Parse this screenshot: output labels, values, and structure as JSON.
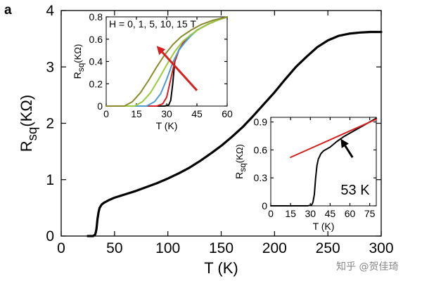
{
  "panel_label": "a",
  "watermark": "知乎 @贺佳琦",
  "chart_data": [
    {
      "type": "line",
      "id": "main",
      "xlabel": "T (K)",
      "ylabel": "R_sq(KΩ)",
      "xlim": [
        0,
        300
      ],
      "ylim": [
        0,
        4
      ],
      "xticks": [
        0,
        50,
        100,
        150,
        200,
        250,
        300
      ],
      "yticks": [
        0,
        1,
        2,
        3,
        4
      ],
      "series": [
        {
          "color": "#000000",
          "x": [
            25,
            30,
            32,
            33,
            34,
            35,
            36,
            38,
            40,
            45,
            50,
            60,
            70,
            80,
            90,
            100,
            110,
            120,
            130,
            140,
            150,
            160,
            170,
            180,
            190,
            200,
            210,
            220,
            230,
            240,
            250,
            260,
            270,
            280,
            290,
            300
          ],
          "y": [
            0,
            0,
            0.03,
            0.12,
            0.3,
            0.42,
            0.5,
            0.56,
            0.59,
            0.64,
            0.68,
            0.74,
            0.8,
            0.87,
            0.94,
            1.02,
            1.11,
            1.21,
            1.33,
            1.46,
            1.6,
            1.76,
            1.93,
            2.13,
            2.34,
            2.55,
            2.78,
            3.0,
            3.18,
            3.35,
            3.47,
            3.55,
            3.59,
            3.61,
            3.62,
            3.62
          ]
        }
      ]
    },
    {
      "type": "line",
      "id": "inset-field",
      "title": "H = 0, 1, 5, 10, 15 T",
      "xlabel": "T (K)",
      "ylabel": "R_sq(KΩ)",
      "xlim": [
        0,
        60
      ],
      "ylim": [
        0,
        0.8
      ],
      "xticks": [
        0,
        15,
        30,
        45,
        60
      ],
      "yticks": [
        0,
        0.2,
        0.4,
        0.6,
        0.8
      ],
      "ytick_labels": [
        "0",
        "0.2",
        "0.4",
        "0.6",
        "0.8"
      ],
      "arrow": {
        "from": [
          45,
          0.14
        ],
        "to": [
          25,
          0.54
        ],
        "color": "#d42020"
      },
      "series": [
        {
          "color": "#000000",
          "x": [
            0,
            29,
            31,
            32,
            33,
            34,
            36,
            38,
            41,
            45,
            50,
            55,
            60
          ],
          "y": [
            0,
            0,
            0.01,
            0.05,
            0.2,
            0.4,
            0.5,
            0.56,
            0.62,
            0.68,
            0.73,
            0.77,
            0.8
          ]
        },
        {
          "color": "#d42020",
          "x": [
            0,
            25,
            28,
            30,
            32,
            34,
            36,
            38,
            41,
            45,
            50,
            55,
            60
          ],
          "y": [
            0,
            0,
            0.02,
            0.08,
            0.24,
            0.4,
            0.5,
            0.56,
            0.62,
            0.68,
            0.73,
            0.77,
            0.8
          ]
        },
        {
          "color": "#4b9cd3",
          "x": [
            0,
            20,
            24,
            27,
            30,
            33,
            36,
            39,
            42,
            45,
            50,
            55,
            60
          ],
          "y": [
            0,
            0,
            0.04,
            0.11,
            0.24,
            0.39,
            0.5,
            0.57,
            0.63,
            0.68,
            0.73,
            0.77,
            0.8
          ]
        },
        {
          "color": "#9bcb3b",
          "x": [
            0,
            14,
            18,
            22,
            26,
            30,
            34,
            38,
            42,
            46,
            50,
            55,
            60
          ],
          "y": [
            0,
            0,
            0.04,
            0.12,
            0.24,
            0.37,
            0.49,
            0.58,
            0.64,
            0.69,
            0.73,
            0.77,
            0.8
          ]
        },
        {
          "color": "#8a8a2a",
          "x": [
            0,
            9,
            13,
            17,
            21,
            25,
            29,
            33,
            37,
            42,
            47,
            53,
            60
          ],
          "y": [
            0,
            0,
            0.04,
            0.12,
            0.23,
            0.35,
            0.46,
            0.55,
            0.62,
            0.68,
            0.73,
            0.77,
            0.8
          ]
        }
      ]
    },
    {
      "type": "line",
      "id": "inset-onset",
      "xlabel": "T (K)",
      "ylabel": "R_sq(KΩ)",
      "xlim": [
        0,
        80
      ],
      "ylim": [
        0,
        0.95
      ],
      "xticks": [
        0,
        15,
        30,
        45,
        60,
        75
      ],
      "yticks": [
        0,
        0.3,
        0.6,
        0.9
      ],
      "ytick_labels": [
        "0",
        "0.3",
        "0.6",
        "0.9"
      ],
      "annotation": "53 K",
      "arrow": {
        "from": [
          62,
          0.52
        ],
        "to": [
          53,
          0.72
        ],
        "color": "#000000"
      },
      "series": [
        {
          "color": "#000000",
          "x": [
            0,
            28,
            31,
            32,
            33,
            34,
            35,
            36,
            38,
            40,
            45,
            50,
            55,
            60,
            65,
            70,
            75,
            80
          ],
          "y": [
            0,
            0,
            0.01,
            0.04,
            0.12,
            0.3,
            0.43,
            0.5,
            0.56,
            0.59,
            0.63,
            0.69,
            0.74,
            0.78,
            0.82,
            0.86,
            0.9,
            0.94
          ]
        },
        {
          "color": "#d42020",
          "x": [
            15,
            80
          ],
          "y": [
            0.52,
            0.93
          ]
        }
      ]
    }
  ]
}
